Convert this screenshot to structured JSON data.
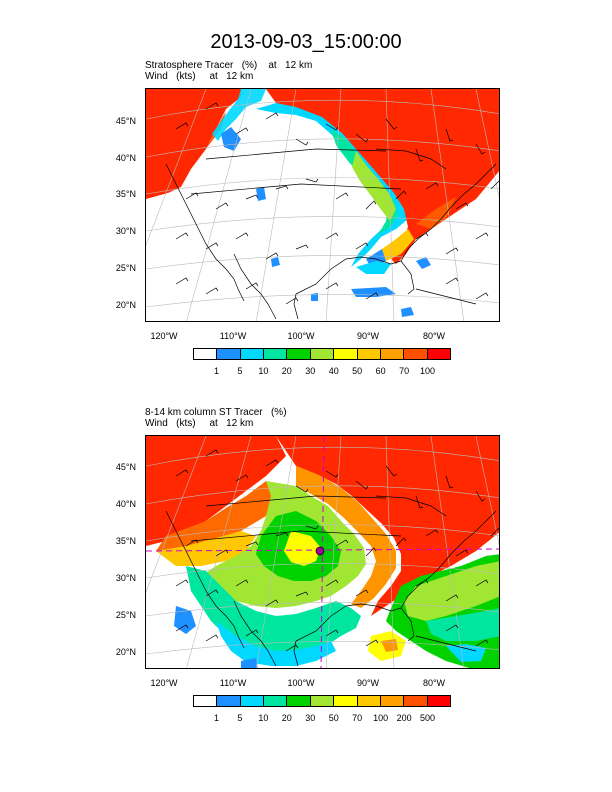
{
  "title": "2013-09-03_15:00:00",
  "panels": [
    {
      "subtitle_line1": "Stratosphere Tracer   (%)    at   12 km",
      "subtitle_line2": "Wind   (kts)     at   12 km",
      "lat_labels": [
        "45°N",
        "40°N",
        "35°N",
        "30°N",
        "25°N",
        "20°N"
      ],
      "lon_labels": [
        "120°W",
        "110°W",
        "100°W",
        "90°W",
        "80°W"
      ],
      "colorbar_labels": [
        "1",
        "5",
        "10",
        "20",
        "30",
        "40",
        "50",
        "60",
        "70",
        "100"
      ]
    },
    {
      "subtitle_line1": "8-14 km column ST Tracer   (%)",
      "subtitle_line2": "Wind   (kts)     at   12 km",
      "lat_labels": [
        "45°N",
        "40°N",
        "35°N",
        "30°N",
        "25°N",
        "20°N"
      ],
      "lon_labels": [
        "120°W",
        "110°W",
        "100°W",
        "90°W",
        "80°W"
      ],
      "colorbar_labels": [
        "1",
        "5",
        "10",
        "20",
        "30",
        "50",
        "70",
        "100",
        "200",
        "500"
      ]
    }
  ],
  "colorbar_colors": [
    "#ffffff",
    "#1e90ff",
    "#00d8ff",
    "#00e6a0",
    "#00d200",
    "#a0e632",
    "#ffff00",
    "#ffc800",
    "#ffa000",
    "#ff5000",
    "#ff0000"
  ]
}
